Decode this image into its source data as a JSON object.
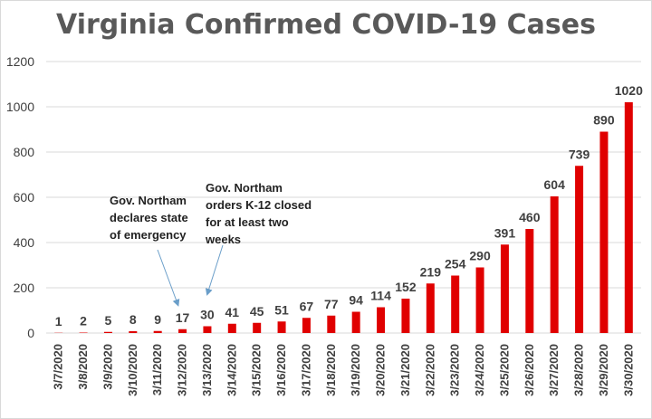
{
  "title": "Virginia Confirmed COVID-19 Cases",
  "colors": {
    "bar": "#e00000",
    "grid": "#d9d9d9",
    "text": "#404040",
    "arrow": "#6a9ec9"
  },
  "annotations": [
    {
      "text": "Gov. Northam\ndeclares state\nof emergency",
      "target": "3/12/2020"
    },
    {
      "text": "Gov. Northam\norders K-12 closed\nfor at least two\nweeks",
      "target": "3/13/2020"
    }
  ],
  "chart_data": {
    "type": "bar",
    "title": "Virginia Confirmed COVID-19 Cases",
    "xlabel": "",
    "ylabel": "",
    "ylim": [
      0,
      1200
    ],
    "yticks": [
      0,
      200,
      400,
      600,
      800,
      1000,
      1200
    ],
    "grid": true,
    "categories": [
      "3/7/2020",
      "3/8/2020",
      "3/9/2020",
      "3/10/2020",
      "3/11/2020",
      "3/12/2020",
      "3/13/2020",
      "3/14/2020",
      "3/15/2020",
      "3/16/2020",
      "3/17/2020",
      "3/18/2020",
      "3/19/2020",
      "3/20/2020",
      "3/21/2020",
      "3/22/2020",
      "3/23/2020",
      "3/24/2020",
      "3/25/2020",
      "3/26/2020",
      "3/27/2020",
      "3/28/2020",
      "3/29/2020",
      "3/30/2020"
    ],
    "values": [
      1,
      2,
      5,
      8,
      9,
      17,
      30,
      41,
      45,
      51,
      67,
      77,
      94,
      114,
      152,
      219,
      254,
      290,
      391,
      460,
      604,
      739,
      890,
      1020
    ]
  }
}
